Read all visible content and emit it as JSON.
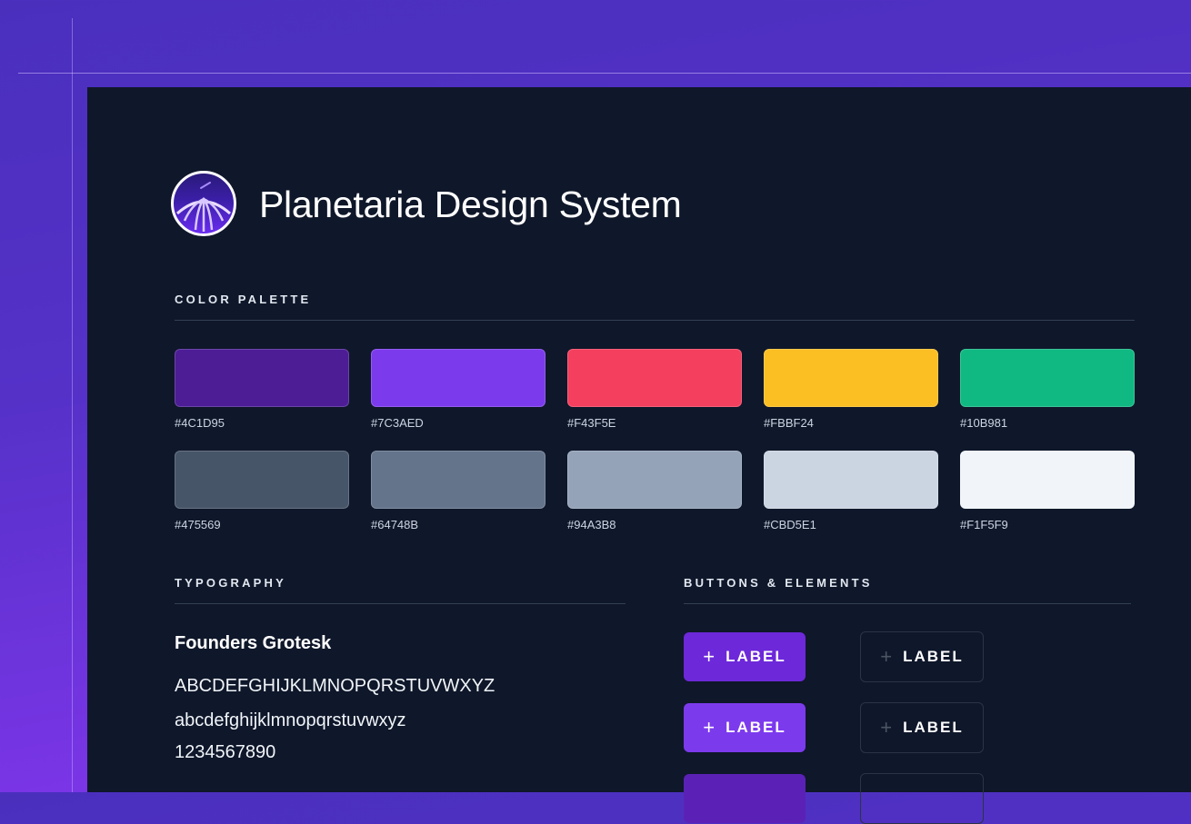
{
  "header": {
    "title": "Planetaria Design System",
    "logo_icon": "planetarium-dome-icon"
  },
  "color_palette": {
    "heading": "COLOR PALETTE",
    "swatches": [
      {
        "hex": "#4C1D95",
        "label": "#4C1D95"
      },
      {
        "hex": "#7C3AED",
        "label": "#7C3AED"
      },
      {
        "hex": "#F43F5E",
        "label": "#F43F5E"
      },
      {
        "hex": "#FBBF24",
        "label": "#FBBF24"
      },
      {
        "hex": "#10B981",
        "label": "#10B981"
      },
      {
        "hex": "#475569",
        "label": "#475569"
      },
      {
        "hex": "#64748B",
        "label": "#64748B"
      },
      {
        "hex": "#94A3B8",
        "label": "#94A3B8"
      },
      {
        "hex": "#CBD5E1",
        "label": "#CBD5E1"
      },
      {
        "hex": "#F1F5F9",
        "label": "#F1F5F9"
      }
    ]
  },
  "typography": {
    "heading": "TYPOGRAPHY",
    "font_name": "Founders Grotesk",
    "uppercase": "ABCDEFGHIJKLMNOPQRSTUVWXYZ",
    "lowercase": "abcdefghijklmnopqrstuvwxyz",
    "digits": "1234567890"
  },
  "buttons": {
    "heading": "BUTTONS & ELEMENTS",
    "plus_icon": "+",
    "rows": [
      {
        "filled": {
          "label": "LABEL",
          "color": "#6D28D9"
        },
        "outline": {
          "label": "LABEL"
        }
      },
      {
        "filled": {
          "label": "LABEL",
          "color": "#7C3AED"
        },
        "outline": {
          "label": "LABEL"
        }
      },
      {
        "filled": {
          "label": "",
          "color": "#5B21B6"
        },
        "outline": {
          "label": ""
        }
      }
    ]
  }
}
